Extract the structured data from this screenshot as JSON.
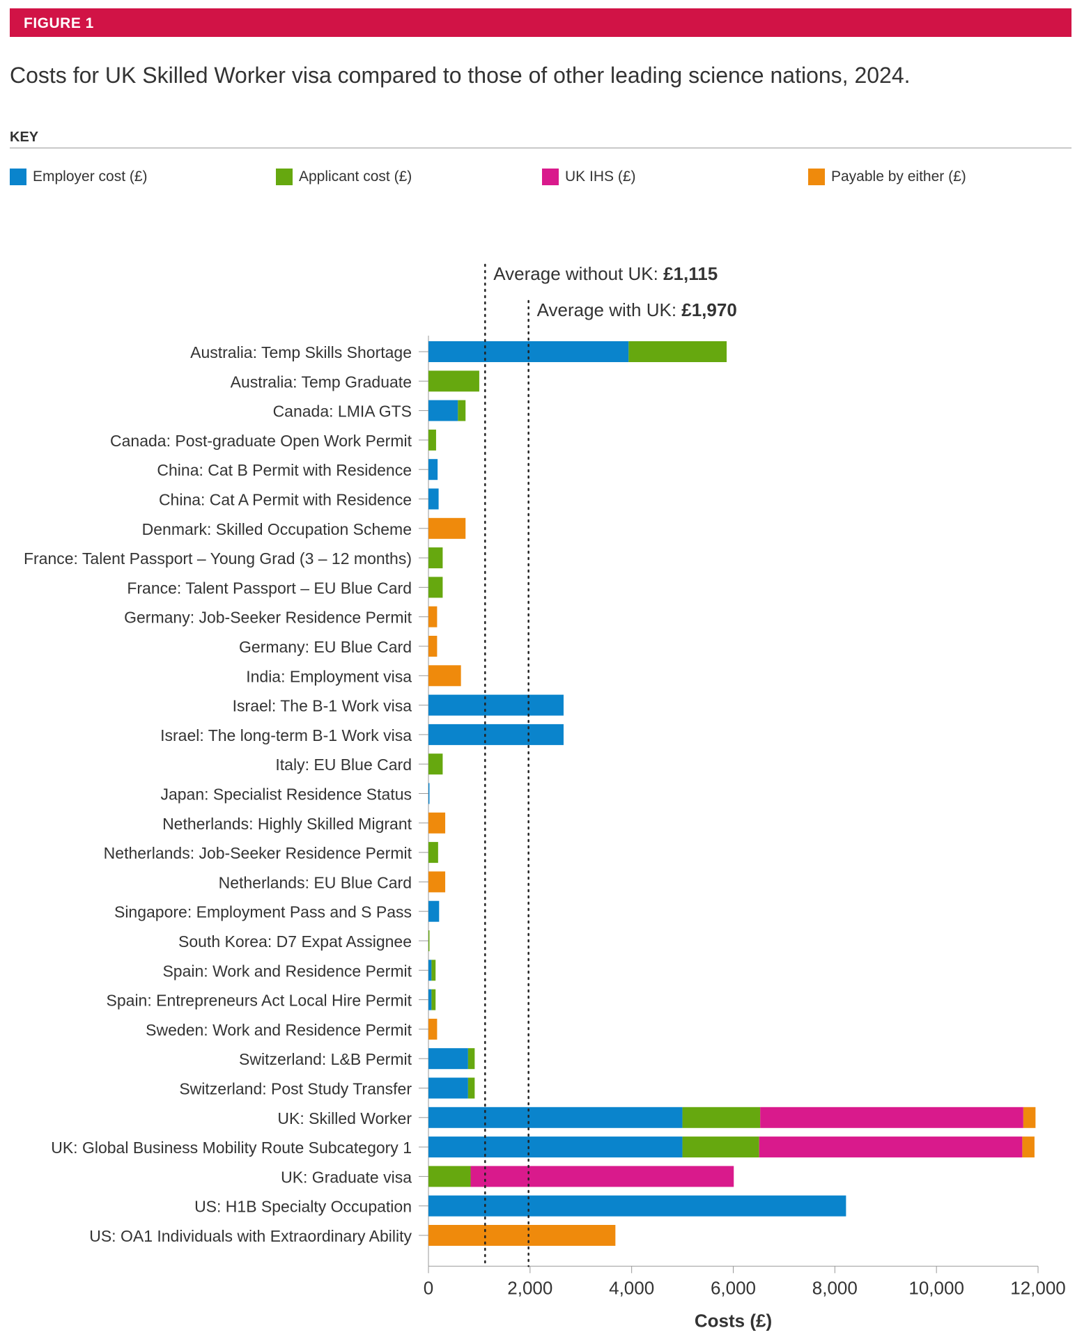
{
  "figure_label": "FIGURE 1",
  "title": "Costs for UK Skilled Worker visa compared to those of other leading science nations, 2024.",
  "key_label": "KEY",
  "colors": {
    "employer": "#0a84cc",
    "applicant": "#66a80f",
    "ihs": "#d91a8c",
    "either": "#ef8a0c",
    "header": "#d11346"
  },
  "chart_data": {
    "type": "bar",
    "orientation": "horizontal",
    "stacked": true,
    "xlabel": "Costs (£)",
    "xlim": [
      0,
      12000
    ],
    "xticks": [
      0,
      2000,
      4000,
      6000,
      8000,
      10000,
      12000
    ],
    "xtick_labels": [
      "0",
      "2,000",
      "4,000",
      "6,000",
      "8,000",
      "10,000",
      "12,000"
    ],
    "legend_position": "top",
    "categories": [
      "Australia: Temp Skills Shortage",
      "Australia: Temp Graduate",
      "Canada: LMIA GTS",
      "Canada: Post-graduate Open Work Permit",
      "China: Cat B Permit with Residence",
      "China: Cat A Permit with Residence",
      "Denmark: Skilled Occupation Scheme",
      "France: Talent Passport – Young Grad (3 – 12 months)",
      "France: Talent Passport – EU Blue Card",
      "Germany: Job-Seeker Residence Permit",
      "Germany: EU Blue Card",
      "India: Employment visa",
      "Israel: The B-1 Work visa",
      "Israel: The long-term B-1 Work visa",
      "Italy: EU Blue Card",
      "Japan: Specialist Residence Status",
      "Netherlands: Highly Skilled Migrant",
      "Netherlands: Job-Seeker Residence Permit",
      "Netherlands: EU Blue Card",
      "Singapore: Employment Pass and S Pass",
      "South Korea: D7 Expat Assignee",
      "Spain: Work and Residence Permit",
      "Spain: Entrepreneurs Act Local Hire Permit",
      "Sweden: Work and Residence Permit",
      "Switzerland: L&B Permit",
      "Switzerland: Post Study Transfer",
      "UK: Skilled Worker",
      "UK: Global Business Mobility Route Subcategory 1",
      "UK: Graduate visa",
      "US: H1B Specialty Occupation",
      "US: OA1 Individuals with Extraordinary Ability"
    ],
    "series": [
      {
        "name": "Employer cost (£)",
        "color_key": "employer",
        "values": [
          3940,
          0,
          580,
          0,
          180,
          200,
          0,
          0,
          0,
          0,
          0,
          0,
          2660,
          2660,
          0,
          20,
          0,
          0,
          0,
          210,
          0,
          60,
          60,
          0,
          780,
          780,
          5000,
          5000,
          0,
          8220,
          0
        ]
      },
      {
        "name": "Applicant cost (£)",
        "color_key": "applicant",
        "values": [
          1930,
          1000,
          150,
          150,
          0,
          0,
          0,
          280,
          280,
          0,
          0,
          0,
          0,
          0,
          280,
          0,
          0,
          190,
          0,
          0,
          20,
          80,
          80,
          0,
          130,
          130,
          1530,
          1510,
          830,
          0,
          0
        ]
      },
      {
        "name": "UK IHS (£)",
        "color_key": "ihs",
        "values": [
          0,
          0,
          0,
          0,
          0,
          0,
          0,
          0,
          0,
          0,
          0,
          0,
          0,
          0,
          0,
          0,
          0,
          0,
          0,
          0,
          0,
          0,
          0,
          0,
          0,
          0,
          5180,
          5180,
          5180,
          0,
          0
        ]
      },
      {
        "name": "Payable by either (£)",
        "color_key": "either",
        "values": [
          0,
          0,
          0,
          0,
          0,
          0,
          730,
          0,
          0,
          170,
          170,
          640,
          0,
          0,
          0,
          0,
          330,
          0,
          330,
          0,
          0,
          0,
          0,
          170,
          0,
          0,
          240,
          240,
          0,
          0,
          3680
        ]
      }
    ],
    "reference_lines": [
      {
        "label": "Average without UK: ",
        "value_text": "£1,115",
        "value": 1115
      },
      {
        "label": "Average with UK: ",
        "value_text": "£1,970",
        "value": 1970
      }
    ]
  }
}
